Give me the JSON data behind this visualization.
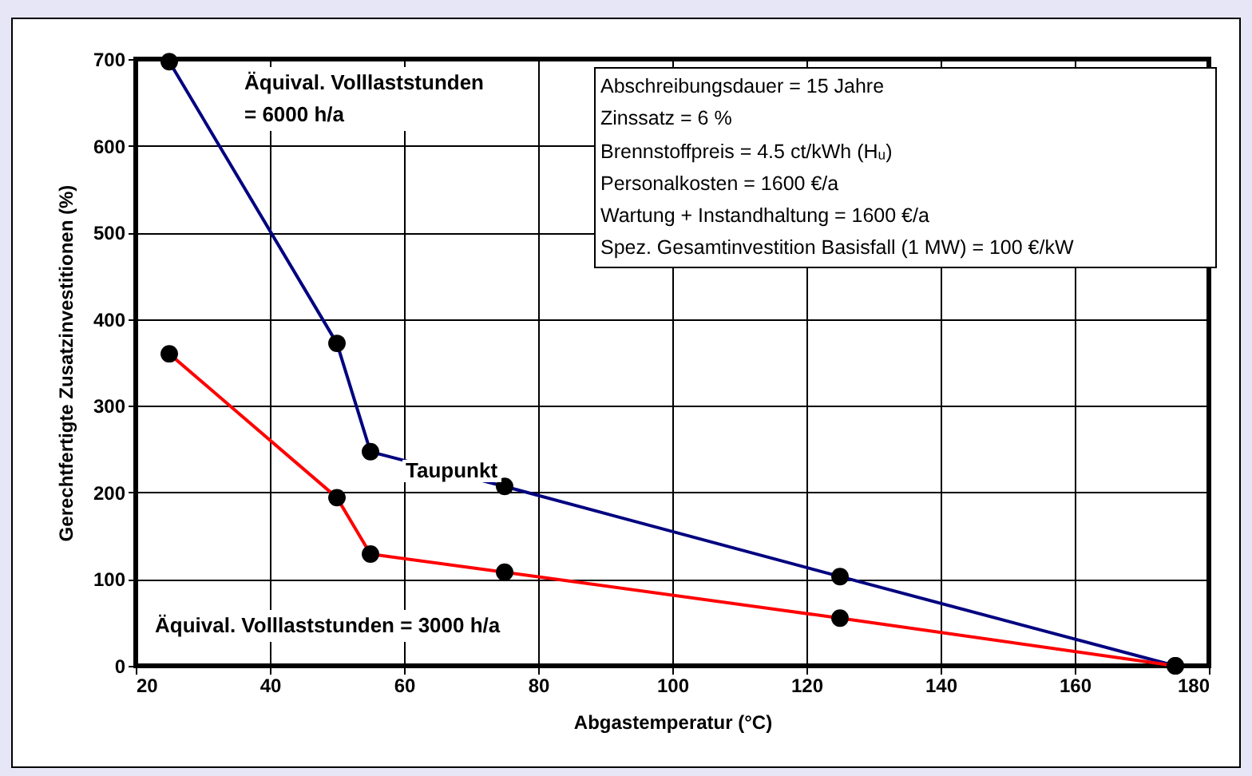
{
  "chart_data": {
    "type": "line",
    "xlabel": "Abgastemperatur (°C)",
    "ylabel": "Gerechtfertigte Zusatzinvestitionen (%)",
    "x": [
      25,
      50,
      55,
      75,
      125,
      175
    ],
    "series": [
      {
        "name": "Äquival. Volllaststunden\n= 6000 h/a",
        "color": "#000080",
        "values": [
          697,
          372,
          247,
          207,
          103,
          0
        ]
      },
      {
        "name": "Äquival. Volllaststunden = 3000 h/a",
        "color": "#ff0000",
        "values": [
          360,
          194,
          129,
          108,
          55,
          0
        ]
      }
    ],
    "xlim": [
      20,
      180
    ],
    "xticks": [
      20,
      40,
      60,
      80,
      100,
      120,
      140,
      160,
      180
    ],
    "ylim": [
      0,
      700
    ],
    "yticks": [
      0,
      100,
      200,
      300,
      400,
      500,
      600,
      700
    ],
    "grid": true,
    "legend": false,
    "marker": "circle",
    "line_style": "solid",
    "annotations": [
      "Taupunkt",
      "Abschreibungsdauer = 15 Jahre",
      "Zinssatz = 6 %",
      "Brennstoffpreis = 4.5 ct/kWh (Hᵤ)",
      "Personalkosten = 1600 €/a",
      "Wartung + Instandhaltung = 1600 €/a",
      "Spez. Gesamtinvestition Basisfall (1 MW) = 100 €/kW"
    ]
  }
}
